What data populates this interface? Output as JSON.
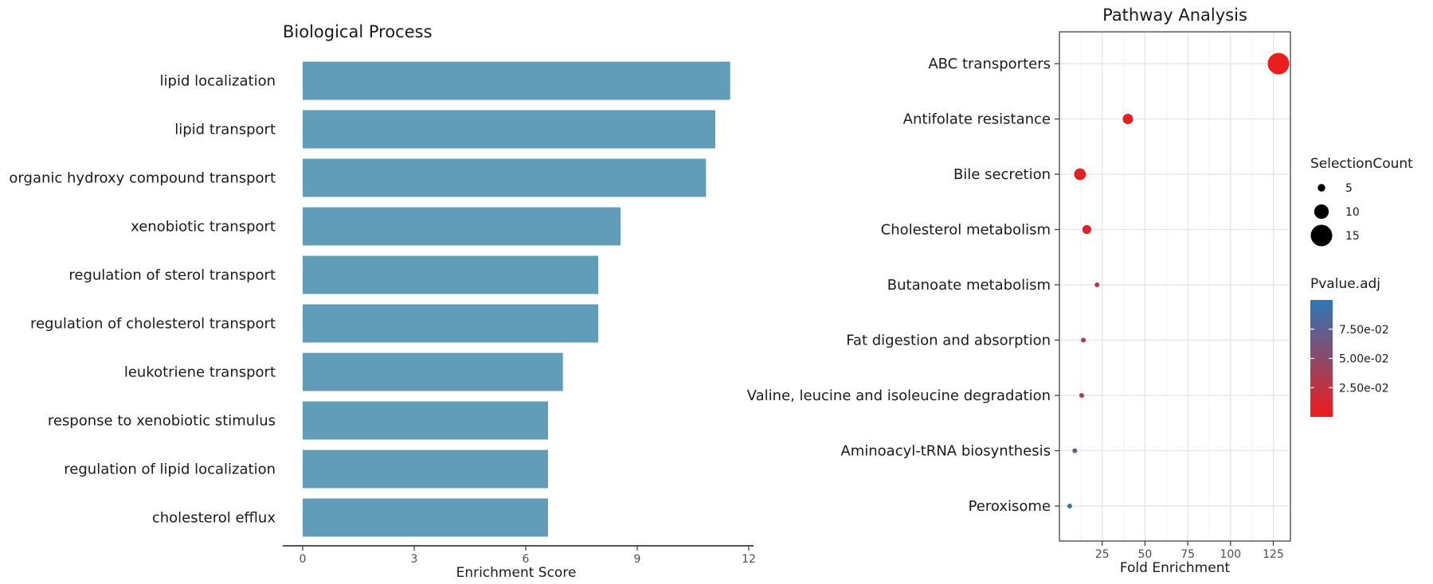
{
  "chart_data": [
    {
      "type": "bar",
      "orientation": "horizontal",
      "title": "Biological Process",
      "xlabel": "Enrichment Score",
      "ylabel": "",
      "xlim": [
        0,
        12
      ],
      "xticks": [
        0,
        3,
        6,
        9,
        12
      ],
      "bar_color": "#619db8",
      "grid": false,
      "categories": [
        "lipid localization",
        "lipid transport",
        "organic hydroxy compound transport",
        "xenobiotic transport",
        "regulation of sterol transport",
        "regulation of cholesterol transport",
        "leukotriene transport",
        "response to xenobiotic stimulus",
        "regulation of lipid localization",
        "cholesterol efflux"
      ],
      "values": [
        11.5,
        11.1,
        10.85,
        8.55,
        7.95,
        7.95,
        7.0,
        6.6,
        6.6,
        6.6
      ]
    },
    {
      "type": "scatter",
      "title": "Pathway Analysis",
      "xlabel": "Fold Enrichment",
      "ylabel": "",
      "xlim": [
        0,
        135
      ],
      "xticks": [
        25,
        50,
        75,
        100,
        125
      ],
      "grid": true,
      "legend_position": "right",
      "size_legend": {
        "title": "SelectionCount",
        "values": [
          5,
          10,
          15
        ]
      },
      "color_legend": {
        "title": "Pvalue.adj",
        "low_color": "#ee1c1c",
        "high_color": "#2c77b7",
        "range": [
          0,
          0.1
        ],
        "ticks": [
          0.025,
          0.05,
          0.075
        ],
        "tick_labels": [
          "2.50e-02",
          "5.00e-02",
          "7.50e-02"
        ]
      },
      "categories": [
        "ABC transporters",
        "Antifolate resistance",
        "Bile secretion",
        "Cholesterol metabolism",
        "Butanoate metabolism",
        "Fat digestion and absorption",
        "Valine, leucine and isoleucine degradation",
        "Aminoacyl-tRNA biosynthesis",
        "Peroxisome"
      ],
      "points": [
        {
          "x": 128,
          "count": 15,
          "padj": 0.001
        },
        {
          "x": 40,
          "count": 7,
          "padj": 0.003
        },
        {
          "x": 12,
          "count": 8,
          "padj": 0.006
        },
        {
          "x": 16,
          "count": 6,
          "padj": 0.008
        },
        {
          "x": 22,
          "count": 3,
          "padj": 0.025
        },
        {
          "x": 14,
          "count": 3,
          "padj": 0.035
        },
        {
          "x": 13,
          "count": 3,
          "padj": 0.04
        },
        {
          "x": 9,
          "count": 3,
          "padj": 0.065
        },
        {
          "x": 6,
          "count": 3,
          "padj": 0.095
        }
      ]
    }
  ]
}
